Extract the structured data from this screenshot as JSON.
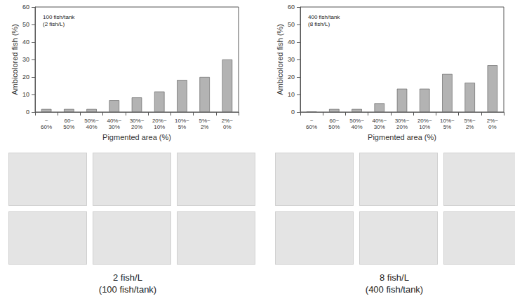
{
  "chart_data": [
    {
      "type": "bar",
      "annotation": [
        "100 fish/tank",
        "(2 fish/L)"
      ],
      "x_label": "Pigmented area (%)",
      "y_label": "Ambicolored fish (%)",
      "categories": [
        "~60%",
        "60~50%",
        "50%~40%",
        "40%~30%",
        "30%~20%",
        "20%~10%",
        "10%~5%",
        "5%~2%",
        "2%~0%"
      ],
      "values": [
        1.7,
        1.7,
        1.7,
        6.7,
        8.3,
        11.7,
        18.3,
        20,
        30
      ],
      "color": "#b3b3b3",
      "ylim": [
        0,
        60
      ],
      "yticks": [
        0,
        10,
        20,
        30,
        40,
        50,
        60
      ],
      "grid": false,
      "caption": [
        "2 fish/L",
        "(100 fish/tank)"
      ]
    },
    {
      "type": "bar",
      "annotation": [
        "400 fish/tank",
        "(8 fish/L)"
      ],
      "x_label": "Pigmented area (%)",
      "y_label": "Ambicolored fish (%)",
      "categories": [
        "~60%",
        "60~50%",
        "50%~40%",
        "40%~30%",
        "30%~20%",
        "20%~10%",
        "10%~5%",
        "5%~2%",
        "2%~0%"
      ],
      "values": [
        0,
        1.7,
        1.7,
        5,
        13.3,
        13.3,
        21.7,
        16.7,
        26.7
      ],
      "color": "#b3b3b3",
      "ylim": [
        0,
        60
      ],
      "yticks": [
        0,
        10,
        20,
        30,
        40,
        50,
        60
      ],
      "grid": false,
      "caption": [
        "8 fish/L",
        "(400 fish/tank)"
      ]
    }
  ]
}
